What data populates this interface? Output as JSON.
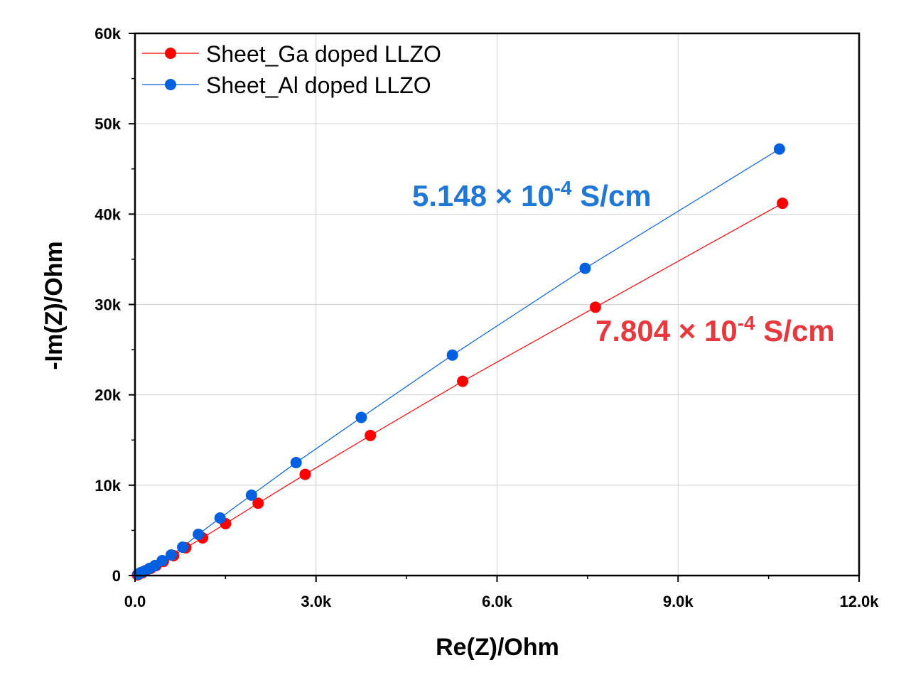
{
  "chart_data": {
    "type": "scatter",
    "xlabel": "Re(Z)/Ohm",
    "ylabel": "-Im(Z)/Ohm",
    "xlim": [
      0,
      12000
    ],
    "ylim": [
      0,
      60000
    ],
    "xticks": [
      0,
      3000,
      6000,
      9000,
      12000
    ],
    "xtick_labels": [
      "0.0",
      "3.0k",
      "6.0k",
      "9.0k",
      "12.0k"
    ],
    "yticks": [
      0,
      10000,
      20000,
      30000,
      40000,
      50000,
      60000
    ],
    "ytick_labels": [
      "0",
      "10k",
      "20k",
      "30k",
      "40k",
      "50k",
      "60k"
    ],
    "grid": true,
    "legend_placement": "top-left",
    "series": [
      {
        "name": "Sheet_Ga doped LLZO",
        "color": "#ff0000",
        "x": [
          40,
          70,
          120,
          180,
          260,
          350,
          470,
          640,
          840,
          1120,
          1500,
          2040,
          2820,
          3900,
          5430,
          7630,
          10730
        ],
        "y": [
          80,
          160,
          310,
          550,
          790,
          1100,
          1570,
          2200,
          3070,
          4170,
          5740,
          8000,
          11200,
          15500,
          21500,
          29700,
          41200
        ]
      },
      {
        "name": "Sheet_Al doped LLZO",
        "color": "#0060e0",
        "x": [
          50,
          90,
          150,
          240,
          330,
          450,
          600,
          790,
          1050,
          1410,
          1930,
          2670,
          3750,
          5260,
          7460,
          10680
        ],
        "y": [
          160,
          310,
          470,
          790,
          1100,
          1650,
          2280,
          3140,
          4560,
          6370,
          8900,
          12500,
          17500,
          24400,
          34000,
          47200
        ]
      }
    ],
    "annotations": [
      {
        "base": "5.148 × 10",
        "exp": "-4",
        "unit": " S/cm",
        "color": "#1f77d8"
      },
      {
        "base": "7.804 × 10",
        "exp": "-4",
        "unit": " S/cm",
        "color": "#e8383d"
      }
    ]
  }
}
